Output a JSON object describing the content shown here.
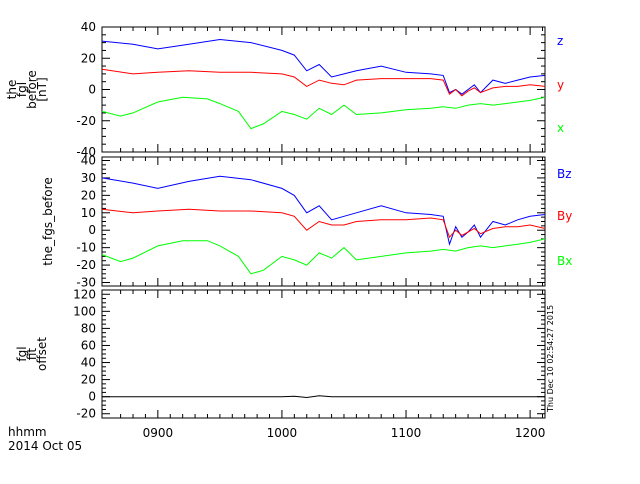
{
  "chart_data": {
    "type": "line",
    "x_axis": {
      "label_line1": "hhmm",
      "label_line2": "2014 Oct 05",
      "range": [
        855,
        1212
      ],
      "ticks": [
        900,
        1000,
        1100,
        1200
      ],
      "tick_labels": [
        "0900",
        "1000",
        "1100",
        "1200"
      ]
    },
    "timestamp": "Thu Dec 10 02:54:27 2015",
    "panels": [
      {
        "id": "fgl",
        "ylabel_lines": [
          "the",
          "fgl",
          "before",
          "[nT]"
        ],
        "ylim": [
          -40,
          40
        ],
        "yticks": [
          -40,
          -20,
          0,
          20,
          40
        ],
        "series": [
          {
            "name": "z",
            "color": "#0000ff",
            "x": [
              855,
              880,
              900,
              925,
              950,
              975,
              1000,
              1010,
              1020,
              1030,
              1040,
              1050,
              1060,
              1080,
              1100,
              1120,
              1130,
              1135,
              1140,
              1145,
              1150,
              1155,
              1160,
              1170,
              1180,
              1190,
              1200,
              1212
            ],
            "y": [
              31,
              29,
              26,
              29,
              32,
              30,
              25,
              22,
              12,
              16,
              8,
              10,
              12,
              15,
              11,
              10,
              9,
              -2,
              0,
              -3,
              0,
              3,
              -2,
              6,
              4,
              6,
              8,
              9
            ]
          },
          {
            "name": "y",
            "color": "#ff0000",
            "x": [
              855,
              880,
              900,
              925,
              950,
              975,
              1000,
              1010,
              1020,
              1030,
              1040,
              1050,
              1060,
              1080,
              1100,
              1120,
              1130,
              1135,
              1140,
              1145,
              1150,
              1155,
              1160,
              1170,
              1180,
              1190,
              1200,
              1212
            ],
            "y": [
              13,
              10,
              11,
              12,
              11,
              11,
              10,
              8,
              2,
              6,
              4,
              3,
              6,
              7,
              7,
              7,
              6,
              -3,
              0,
              -4,
              -1,
              1,
              -2,
              1,
              2,
              2,
              3,
              2
            ]
          },
          {
            "name": "x",
            "color": "#00ff00",
            "x": [
              855,
              870,
              880,
              900,
              920,
              940,
              950,
              965,
              975,
              985,
              1000,
              1010,
              1020,
              1030,
              1040,
              1050,
              1060,
              1080,
              1100,
              1120,
              1130,
              1140,
              1150,
              1160,
              1170,
              1180,
              1190,
              1200,
              1212
            ],
            "y": [
              -14,
              -17,
              -15,
              -8,
              -5,
              -6,
              -9,
              -14,
              -25,
              -22,
              -14,
              -16,
              -19,
              -12,
              -16,
              -10,
              -16,
              -15,
              -13,
              -12,
              -11,
              -12,
              -10,
              -9,
              -10,
              -9,
              -8,
              -7,
              -5
            ]
          }
        ]
      },
      {
        "id": "fgs",
        "ylabel_lines": [
          "the_fgs_before"
        ],
        "ylim": [
          -32,
          42
        ],
        "yticks": [
          -30,
          -20,
          -10,
          0,
          10,
          20,
          30,
          40
        ],
        "series": [
          {
            "name": "Bz",
            "color": "#0000ff",
            "x": [
              855,
              880,
              900,
              925,
              950,
              975,
              1000,
              1010,
              1020,
              1030,
              1040,
              1050,
              1060,
              1080,
              1100,
              1120,
              1130,
              1135,
              1140,
              1145,
              1150,
              1155,
              1160,
              1170,
              1180,
              1190,
              1200,
              1212
            ],
            "y": [
              30,
              27,
              24,
              28,
              31,
              29,
              24,
              20,
              10,
              14,
              6,
              8,
              10,
              14,
              10,
              9,
              8,
              -8,
              2,
              -4,
              -1,
              3,
              -4,
              5,
              3,
              6,
              8,
              9
            ]
          },
          {
            "name": "By",
            "color": "#ff0000",
            "x": [
              855,
              880,
              900,
              925,
              950,
              975,
              1000,
              1010,
              1020,
              1030,
              1040,
              1050,
              1060,
              1080,
              1100,
              1120,
              1130,
              1135,
              1140,
              1145,
              1150,
              1155,
              1160,
              1170,
              1180,
              1190,
              1200,
              1212
            ],
            "y": [
              12,
              10,
              11,
              12,
              11,
              11,
              10,
              8,
              0,
              5,
              3,
              3,
              5,
              6,
              6,
              7,
              6,
              -4,
              0,
              -3,
              -1,
              1,
              -2,
              1,
              2,
              2,
              3,
              1
            ]
          },
          {
            "name": "Bx",
            "color": "#00ff00",
            "x": [
              855,
              870,
              880,
              900,
              920,
              940,
              950,
              965,
              975,
              985,
              1000,
              1010,
              1020,
              1030,
              1040,
              1050,
              1060,
              1080,
              1100,
              1120,
              1130,
              1140,
              1150,
              1160,
              1170,
              1180,
              1190,
              1200,
              1212
            ],
            "y": [
              -14,
              -18,
              -16,
              -9,
              -6,
              -6,
              -9,
              -15,
              -25,
              -23,
              -15,
              -17,
              -20,
              -13,
              -16,
              -10,
              -17,
              -15,
              -13,
              -12,
              -11,
              -12,
              -10,
              -9,
              -10,
              -9,
              -8,
              -7,
              -5
            ]
          }
        ]
      },
      {
        "id": "offset",
        "ylabel_lines": [
          "fgl",
          "fit",
          "offset"
        ],
        "ylim": [
          -25,
          125
        ],
        "yticks": [
          -20,
          0,
          20,
          40,
          60,
          80,
          100,
          120
        ],
        "series": [
          {
            "name": "",
            "color": "#000000",
            "x": [
              855,
              900,
              950,
              1000,
              1010,
              1020,
              1030,
              1040,
              1060,
              1100,
              1150,
              1200,
              1212
            ],
            "y": [
              0,
              0,
              0,
              0,
              0.5,
              -1,
              1,
              0,
              0,
              0,
              0,
              0,
              0
            ]
          }
        ]
      }
    ]
  }
}
